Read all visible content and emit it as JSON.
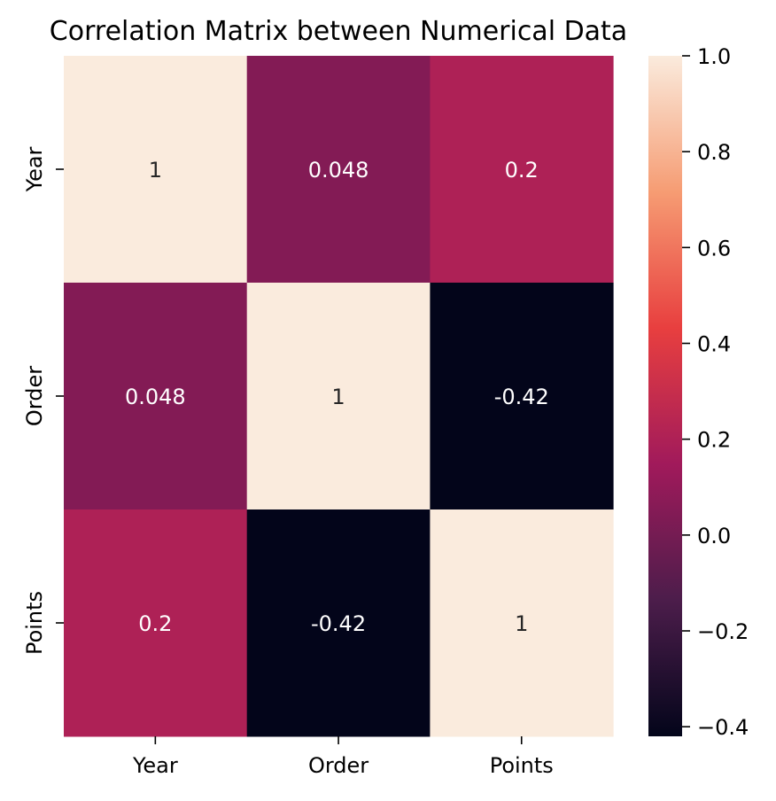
{
  "chart_data": {
    "type": "heatmap",
    "title": "Correlation Matrix between Numerical Data",
    "row_labels": [
      "Year",
      "Order",
      "Points"
    ],
    "column_labels": [
      "Year",
      "Order",
      "Points"
    ],
    "values": [
      [
        1,
        0.048,
        0.2
      ],
      [
        0.048,
        1,
        -0.42
      ],
      [
        0.2,
        -0.42,
        1
      ]
    ],
    "cell_annotations": [
      [
        "1",
        "0.048",
        "0.2"
      ],
      [
        "0.048",
        "1",
        "-0.42"
      ],
      [
        "0.2",
        "-0.42",
        "1"
      ]
    ],
    "colorbar": {
      "range": [
        -0.42,
        1.0
      ],
      "ticks": [
        1.0,
        0.8,
        0.6,
        0.4,
        0.2,
        0.0,
        -0.2,
        -0.4
      ],
      "tick_labels": [
        "1.0",
        "0.8",
        "0.6",
        "0.4",
        "0.2",
        "0.0",
        "−0.2",
        "−0.4"
      ],
      "colormap": "rocket",
      "colormap_stops": [
        "#03051a",
        "#4c1d4b",
        "#a11a5b",
        "#e83f3f",
        "#f69c73",
        "#faebdd"
      ]
    },
    "grid": false,
    "legend": "colorbar-right"
  }
}
